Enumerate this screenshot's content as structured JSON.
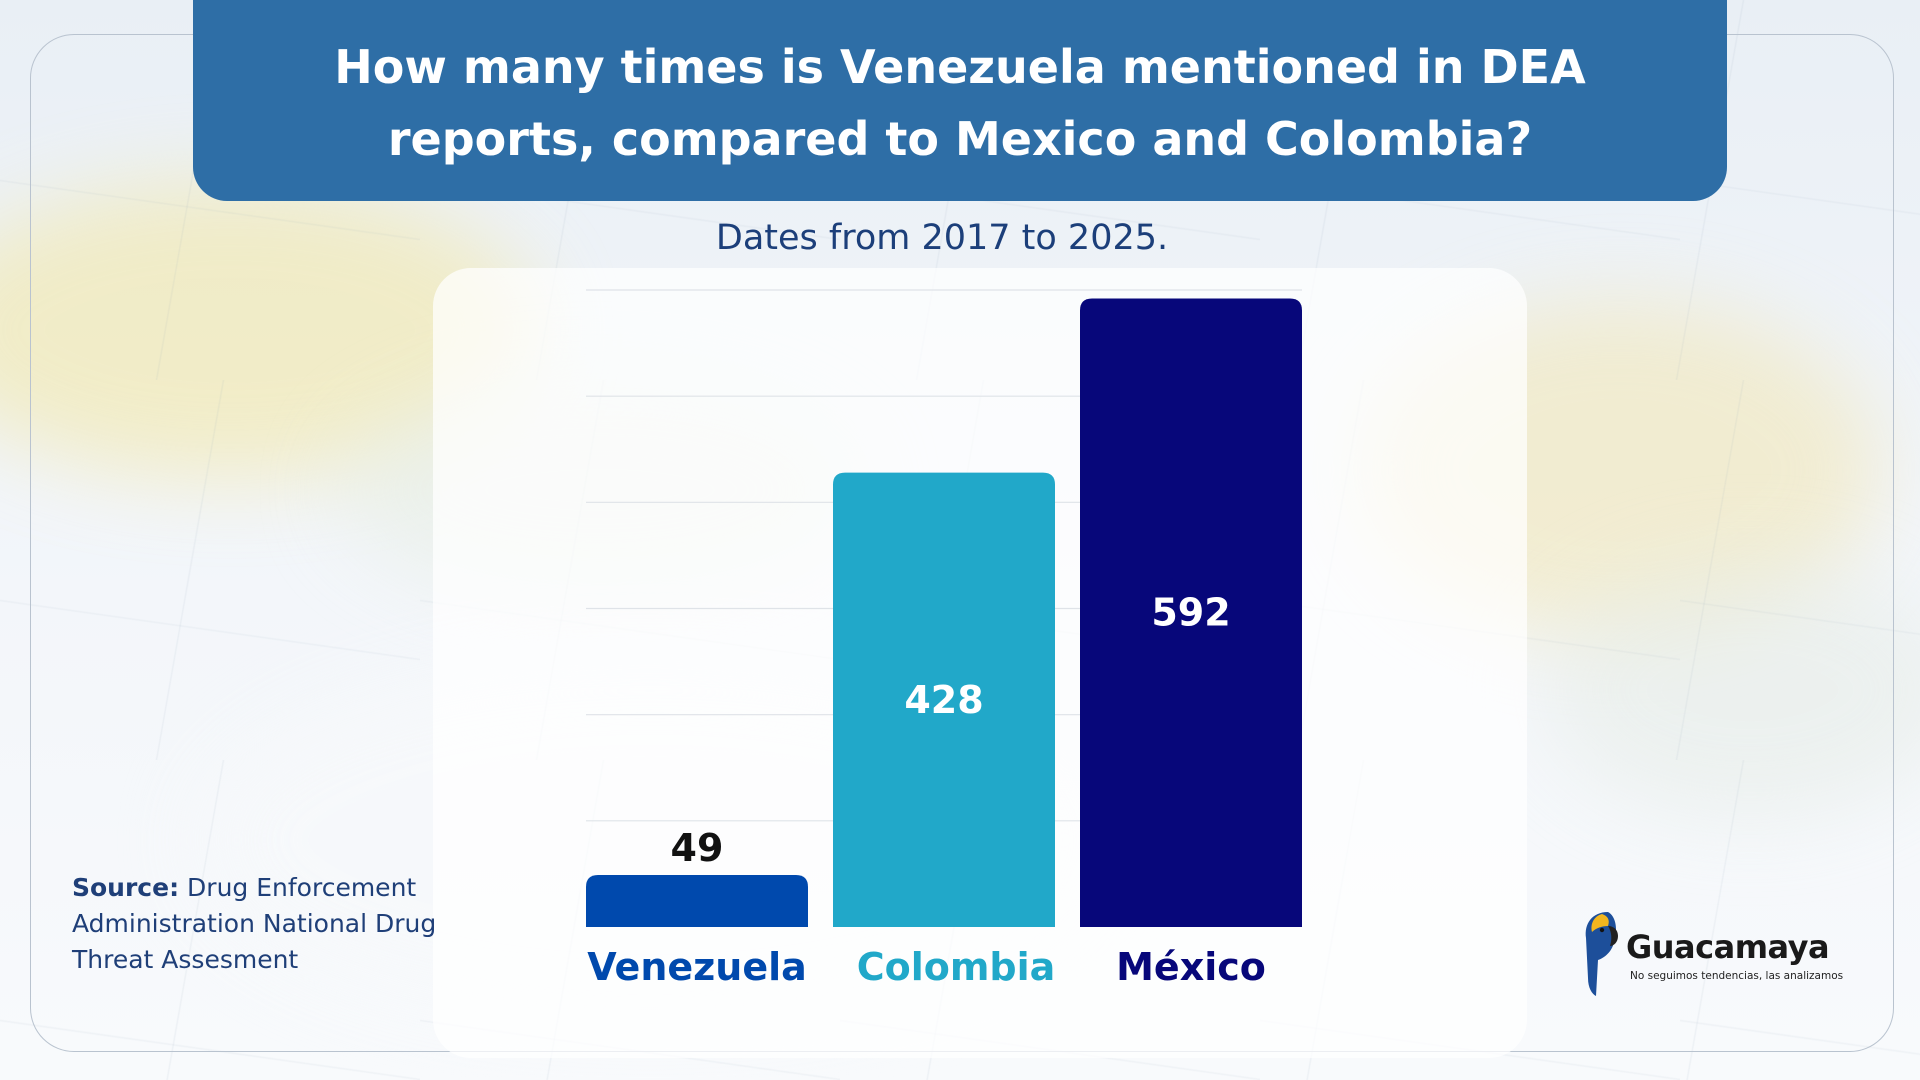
{
  "header": {
    "title": "How many times is Venezuela mentioned in DEA reports, compared to Mexico and Colombia?",
    "subtitle": "Dates from 2017 to 2025."
  },
  "source": {
    "label": "Source:",
    "text": "Drug Enforcement Administration National Drug Threat Assesment"
  },
  "brand": {
    "name": "Guacamaya",
    "tagline": "No seguimos tendencias, las analizamos"
  },
  "chart_data": {
    "type": "bar",
    "title": "",
    "xlabel": "",
    "ylabel": "",
    "ylim": [
      0,
      600
    ],
    "grid": true,
    "categories": [
      "Venezuela",
      "Colombia",
      "México"
    ],
    "values": [
      49,
      428,
      592
    ],
    "colors": [
      "#0049ad",
      "#21a8c9",
      "#07077a"
    ],
    "value_label_colors": [
      "#111111",
      "#ffffff",
      "#ffffff"
    ]
  }
}
